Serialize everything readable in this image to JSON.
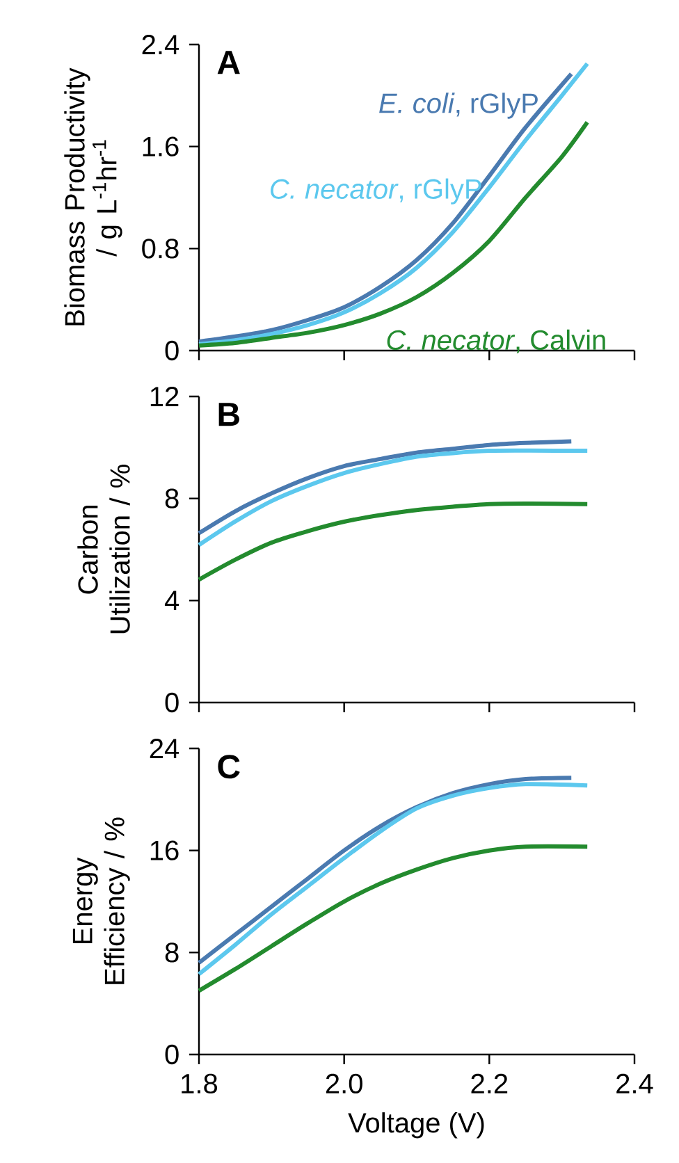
{
  "chart_data": [
    {
      "type": "line",
      "title": "A",
      "ylabel": "Biomass Productivity / g L$^{-1}$hr$^{-1}$",
      "xlim": [
        1.8,
        2.4
      ],
      "xticks": [
        1.8,
        2.0,
        2.2,
        2.4
      ],
      "ylim": [
        0,
        2.4
      ],
      "yticks": [
        0,
        0.8,
        1.6,
        2.4
      ],
      "tick_labels": "y",
      "grid": false,
      "legend": false,
      "series": [
        {
          "name": "*E. coli*, rGlyP",
          "color": "#4a7ab0",
          "x": [
            1.8,
            1.85,
            1.9,
            1.95,
            2.0,
            2.05,
            2.1,
            2.15,
            2.2,
            2.25,
            2.313
          ],
          "values": [
            0.07,
            0.11,
            0.16,
            0.24,
            0.34,
            0.5,
            0.71,
            1.0,
            1.37,
            1.75,
            2.17
          ]
        },
        {
          "name": "*C. necator*, rGlyP",
          "color": "#5cc8ee",
          "x": [
            1.8,
            1.85,
            1.9,
            1.95,
            2.0,
            2.05,
            2.1,
            2.15,
            2.2,
            2.25,
            2.3,
            2.335
          ],
          "values": [
            0.05,
            0.08,
            0.13,
            0.2,
            0.3,
            0.45,
            0.65,
            0.93,
            1.28,
            1.65,
            2.0,
            2.25
          ]
        },
        {
          "name": "*C. necator*, Calvin",
          "color": "#238b2e",
          "x": [
            1.8,
            1.85,
            1.9,
            1.95,
            2.0,
            2.05,
            2.1,
            2.15,
            2.2,
            2.25,
            2.3,
            2.335
          ],
          "values": [
            0.04,
            0.06,
            0.1,
            0.14,
            0.2,
            0.29,
            0.42,
            0.61,
            0.86,
            1.2,
            1.52,
            1.79
          ]
        }
      ]
    },
    {
      "type": "line",
      "title": "B",
      "ylabel": "Carbon Utilization / %",
      "xlim": [
        1.8,
        2.4
      ],
      "xticks": [
        1.8,
        2.0,
        2.2,
        2.4
      ],
      "ylim": [
        0,
        12
      ],
      "yticks": [
        0,
        4,
        8,
        12
      ],
      "tick_labels": "y",
      "grid": false,
      "legend": false,
      "series": [
        {
          "color": "#4a7ab0",
          "x": [
            1.8,
            1.85,
            1.9,
            1.95,
            2.0,
            2.05,
            2.1,
            2.15,
            2.2,
            2.25,
            2.313
          ],
          "values": [
            6.64,
            7.5,
            8.2,
            8.8,
            9.27,
            9.55,
            9.8,
            9.95,
            10.1,
            10.18,
            10.24
          ]
        },
        {
          "color": "#5cc8ee",
          "x": [
            1.8,
            1.85,
            1.9,
            1.95,
            2.0,
            2.05,
            2.1,
            2.15,
            2.2,
            2.25,
            2.335
          ],
          "values": [
            6.18,
            7.1,
            7.9,
            8.5,
            9.0,
            9.35,
            9.64,
            9.78,
            9.87,
            9.88,
            9.87
          ]
        },
        {
          "color": "#238b2e",
          "x": [
            1.8,
            1.85,
            1.9,
            1.95,
            2.0,
            2.05,
            2.1,
            2.15,
            2.2,
            2.25,
            2.335
          ],
          "values": [
            4.82,
            5.6,
            6.27,
            6.72,
            7.09,
            7.35,
            7.55,
            7.68,
            7.78,
            7.8,
            7.78
          ]
        }
      ]
    },
    {
      "type": "line",
      "title": "C",
      "ylabel": "Energy Efficiency / %",
      "xlabel": "Voltage (V)",
      "xlim": [
        1.8,
        2.4
      ],
      "xticks": [
        1.8,
        {
          "value": 2.0,
          "label": "2.0"
        },
        2.2,
        2.4
      ],
      "ylim": [
        0,
        24
      ],
      "yticks": [
        0,
        8,
        16,
        24
      ],
      "grid": false,
      "legend": false,
      "series": [
        {
          "color": "#4a7ab0",
          "x": [
            1.8,
            1.85,
            1.9,
            1.95,
            2.0,
            2.05,
            2.1,
            2.15,
            2.2,
            2.25,
            2.313
          ],
          "values": [
            7.2,
            9.4,
            11.6,
            13.8,
            16.0,
            17.9,
            19.4,
            20.5,
            21.2,
            21.6,
            21.7
          ]
        },
        {
          "color": "#5cc8ee",
          "x": [
            1.8,
            1.85,
            1.9,
            1.95,
            2.0,
            2.05,
            2.1,
            2.15,
            2.2,
            2.25,
            2.335
          ],
          "values": [
            6.3,
            8.6,
            11.0,
            13.2,
            15.4,
            17.5,
            19.3,
            20.3,
            20.9,
            21.2,
            21.1
          ]
        },
        {
          "color": "#238b2e",
          "x": [
            1.8,
            1.85,
            1.9,
            1.95,
            2.0,
            2.05,
            2.1,
            2.15,
            2.2,
            2.25,
            2.335
          ],
          "values": [
            5.0,
            6.7,
            8.5,
            10.3,
            12.0,
            13.4,
            14.5,
            15.4,
            16.0,
            16.3,
            16.3
          ]
        }
      ]
    }
  ]
}
